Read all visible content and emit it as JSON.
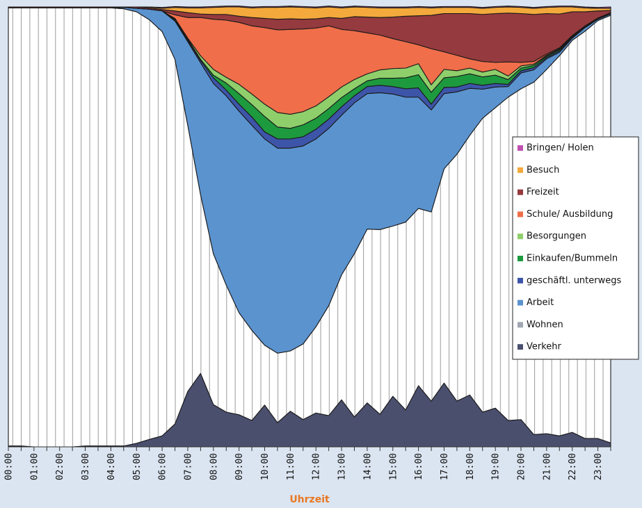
{
  "chart_data": {
    "type": "area",
    "stacked": true,
    "xlabel": "Uhrzeit",
    "categories": [
      "00:00",
      null,
      "01:00",
      null,
      "02:00",
      null,
      "03:00",
      null,
      "04:00",
      null,
      "05:00",
      null,
      "06:00",
      null,
      "07:00",
      null,
      "08:00",
      null,
      "09:00",
      null,
      "10:00",
      null,
      "11:00",
      null,
      "12:00",
      null,
      "13:00",
      null,
      "14:00",
      null,
      "15:00",
      null,
      "16:00",
      null,
      "17:00",
      null,
      "18:00",
      null,
      "19:00",
      null,
      "20:00",
      null,
      "21:00",
      null,
      "22:00",
      null,
      "23:00",
      null
    ],
    "ylim": [
      0,
      100
    ],
    "legend": "right",
    "series": [
      {
        "name": "Verkehr",
        "color": "#4a4f6e",
        "values": [
          0.2,
          0.2,
          0,
          0,
          0,
          0,
          0.2,
          0.2,
          0.2,
          0.2,
          0.8,
          1.7,
          2.5,
          5.2,
          12.6,
          16.7,
          9.6,
          7.9,
          7.3,
          6.0,
          9.5,
          5.5,
          8.1,
          6.2,
          7.7,
          7.1,
          10.7,
          6.8,
          10.0,
          7.4,
          11.5,
          8.4,
          13.9,
          10.4,
          14.5,
          10.4,
          11.8,
          7.9,
          8.8,
          6.0,
          6.2,
          2.8,
          3.0,
          2.5,
          3.3,
          1.9,
          1.9,
          0.9
        ]
      },
      {
        "name": "Wohnen",
        "color": "#a0a7b0",
        "values": [
          99.6,
          99.6,
          99.8,
          99.8,
          99.8,
          99.8,
          99.6,
          99.6,
          99.6,
          99.4,
          98.1,
          95.4,
          91.9,
          82.9,
          60.5,
          40.6,
          34.3,
          28.9,
          23.2,
          20.5,
          13.6,
          15.8,
          13.7,
          17.2,
          19.6,
          25.0,
          28.4,
          37.1,
          39.5,
          42.0,
          38.7,
          42.7,
          40.3,
          43.0,
          48.7,
          56.1,
          59.0,
          66.8,
          68.3,
          73.5,
          75.2,
          80.1,
          82.8,
          86.4,
          89.1,
          92.6,
          95.0,
          97.2
        ]
      },
      {
        "name": "Arbeit",
        "color": "#5b93cf",
        "values": [
          0,
          0,
          0,
          0,
          0,
          0,
          0,
          0,
          0,
          0.3,
          0.8,
          2.4,
          4.7,
          8.7,
          19.0,
          30.0,
          38.7,
          43.0,
          45.8,
          46.6,
          46.9,
          46.6,
          46.1,
          45.0,
          42.7,
          40.3,
          36.3,
          34.3,
          30.8,
          31.1,
          30.0,
          28.4,
          25.3,
          23.2,
          17.1,
          14.2,
          10.7,
          6.6,
          4.7,
          2.4,
          3.6,
          2.8,
          2.4,
          0.8,
          0.5,
          0.8,
          0.3,
          0.3
        ]
      },
      {
        "name": "geschäftl. unterwegs",
        "color": "#3d55a8",
        "values": [
          0,
          0,
          0,
          0,
          0,
          0,
          0,
          0,
          0,
          0,
          0,
          0,
          0,
          0.2,
          0.3,
          0.5,
          1.3,
          1.3,
          1.6,
          1.9,
          1.6,
          2.1,
          2.1,
          2.1,
          2.2,
          2.1,
          1.9,
          1.6,
          1.6,
          1.7,
          1.7,
          1.9,
          2.1,
          1.3,
          1.4,
          1.1,
          1.1,
          0.9,
          0.8,
          0.5,
          0.5,
          0.5,
          0.3,
          0.3,
          0.2,
          0.2,
          0.1,
          0.1
        ]
      },
      {
        "name": "Einkaufen/Bummeln",
        "color": "#1e9a3e",
        "values": [
          0,
          0,
          0,
          0,
          0,
          0,
          0,
          0,
          0,
          0,
          0,
          0,
          0,
          0.2,
          0.3,
          0.3,
          0.6,
          1.6,
          2.4,
          2.8,
          3.5,
          2.7,
          2.4,
          2.7,
          2.5,
          2.4,
          2.1,
          1.6,
          1.3,
          1.6,
          1.9,
          2.5,
          3.0,
          2.7,
          2.2,
          2.4,
          2.2,
          1.9,
          1.9,
          1.1,
          0.6,
          0.5,
          0.3,
          0.3,
          0.2,
          0.1,
          0.1,
          0.1
        ]
      },
      {
        "name": "Besorgungen",
        "color": "#8fcf6b",
        "values": [
          0,
          0,
          0,
          0,
          0,
          0,
          0,
          0,
          0,
          0,
          0,
          0,
          0,
          0.2,
          0.2,
          0.8,
          1.3,
          1.3,
          2.1,
          2.4,
          2.8,
          3.3,
          3.2,
          3.0,
          2.8,
          2.7,
          2.4,
          2.1,
          1.6,
          1.9,
          2.2,
          2.2,
          2.5,
          1.7,
          1.9,
          1.3,
          1.3,
          1.1,
          1.3,
          0.8,
          0.5,
          0.3,
          0.2,
          0.2,
          0.2,
          0.1,
          0.1,
          0.1
        ]
      },
      {
        "name": "Schule/ Ausbildung",
        "color": "#f06e4a",
        "values": [
          0,
          0,
          0,
          0,
          0,
          0,
          0,
          0,
          0,
          0,
          0,
          0,
          0,
          0.8,
          4.7,
          8.7,
          11.4,
          13.0,
          14.1,
          15.5,
          17.4,
          18.8,
          19.3,
          18.8,
          17.7,
          16.1,
          13.1,
          11.1,
          9.3,
          7.9,
          6.8,
          6.0,
          4.3,
          8.2,
          4.0,
          3.5,
          2.1,
          2.4,
          1.6,
          3.2,
          0.8,
          0.6,
          0.3,
          0.2,
          0,
          0,
          0,
          0
        ]
      },
      {
        "name": "Freizeit",
        "color": "#953a3e",
        "values": [
          0.2,
          0.2,
          0.2,
          0.2,
          0.2,
          0.2,
          0.2,
          0.2,
          0.2,
          0.1,
          0.3,
          0.3,
          0.3,
          0.9,
          1.1,
          0.8,
          1.1,
          1.3,
          1.4,
          1.9,
          2.1,
          2.4,
          2.4,
          2.2,
          2.1,
          1.9,
          2.5,
          3.2,
          3.6,
          4.0,
          4.9,
          5.8,
          6.6,
          7.6,
          8.7,
          9.5,
          10.3,
          10.7,
          11.1,
          11.1,
          11.1,
          10.7,
          9.2,
          7.7,
          5.4,
          3.2,
          1.6,
          0.5
        ]
      },
      {
        "name": "Besuch",
        "color": "#f4a93c",
        "values": [
          0,
          0,
          0,
          0,
          0,
          0,
          0,
          0,
          0,
          0,
          0,
          0.2,
          0.3,
          0.8,
          1.1,
          1.4,
          1.6,
          1.7,
          2.1,
          2.2,
          2.5,
          2.7,
          2.7,
          2.7,
          2.5,
          2.4,
          2.4,
          2.2,
          2.2,
          2.2,
          2.1,
          1.9,
          1.9,
          1.7,
          1.4,
          1.4,
          1.4,
          1.4,
          1.4,
          1.4,
          1.4,
          1.4,
          1.4,
          1.6,
          1.1,
          0.9,
          0.6,
          0.5
        ]
      },
      {
        "name": "Bringen/ Holen",
        "color": "#c050b0",
        "values": [
          0,
          0,
          0,
          0,
          0,
          0,
          0,
          0,
          0,
          0,
          0,
          0,
          0.2,
          0.2,
          0.2,
          0.2,
          0.2,
          0.2,
          0.2,
          0.2,
          0.2,
          0.2,
          0.2,
          0.2,
          0.2,
          0.2,
          0.2,
          0.2,
          0.2,
          0.2,
          0.2,
          0.2,
          0.2,
          0.2,
          0.2,
          0.2,
          0.2,
          0.2,
          0.2,
          0.2,
          0.2,
          0.2,
          0.2,
          0.2,
          0.2,
          0.2,
          0.2,
          0.3
        ]
      }
    ]
  }
}
